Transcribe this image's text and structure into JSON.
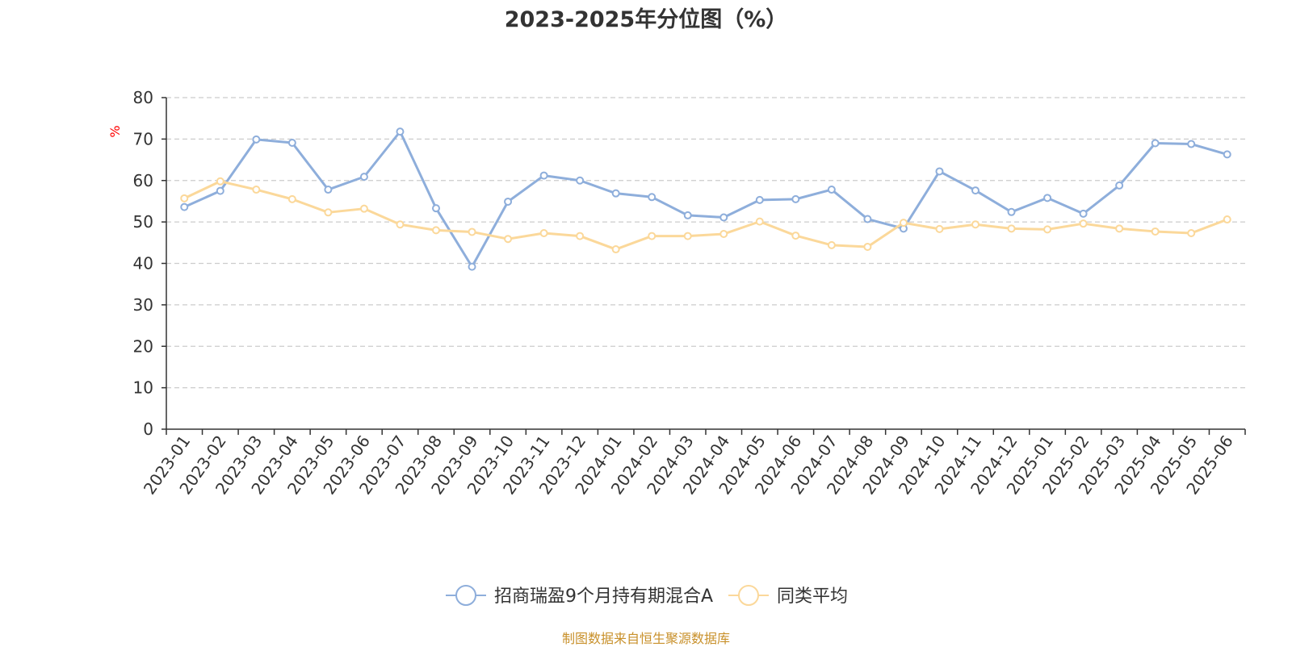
{
  "chart_data": {
    "type": "line",
    "title": "2023-2025年分位图（%）",
    "ylabel": "%",
    "xlabel": "",
    "ylim": [
      0,
      80
    ],
    "yticks": [
      0,
      10,
      20,
      30,
      40,
      50,
      60,
      70,
      80
    ],
    "grid": true,
    "legend_position": "bottom",
    "categories": [
      "2023-01",
      "2023-02",
      "2023-03",
      "2023-04",
      "2023-05",
      "2023-06",
      "2023-07",
      "2023-08",
      "2023-09",
      "2023-10",
      "2023-11",
      "2023-12",
      "2024-01",
      "2024-02",
      "2024-03",
      "2024-04",
      "2024-05",
      "2024-06",
      "2024-07",
      "2024-08",
      "2024-09",
      "2024-10",
      "2024-11",
      "2024-12",
      "2025-01",
      "2025-02",
      "2025-03",
      "2025-04",
      "2025-05",
      "2025-06"
    ],
    "series": [
      {
        "name": "招商瑞盈9个月持有期混合A",
        "color": "#8eaedb",
        "values": [
          53.6,
          57.5,
          69.9,
          69.1,
          57.8,
          60.9,
          71.8,
          53.3,
          39.2,
          54.9,
          61.2,
          60.0,
          56.9,
          56.0,
          51.6,
          51.1,
          55.3,
          55.5,
          57.8,
          50.7,
          48.4,
          62.2,
          57.6,
          52.4,
          55.8,
          52.0,
          58.8,
          69.0,
          68.8,
          66.3
        ]
      },
      {
        "name": "同类平均",
        "color": "#fbd89a",
        "values": [
          55.7,
          59.8,
          57.8,
          55.5,
          52.3,
          53.2,
          49.4,
          48.0,
          47.6,
          45.9,
          47.3,
          46.6,
          43.4,
          46.6,
          46.6,
          47.1,
          50.1,
          46.7,
          44.4,
          44.0,
          49.8,
          48.3,
          49.4,
          48.4,
          48.2,
          49.6,
          48.4,
          47.7,
          47.3,
          50.6
        ]
      }
    ]
  },
  "source_note": "制图数据来自恒生聚源数据库",
  "colors": {
    "axis": "#333333",
    "grid": "#cccccc",
    "ylabel": "#ff0000",
    "source": "#c8902a"
  }
}
